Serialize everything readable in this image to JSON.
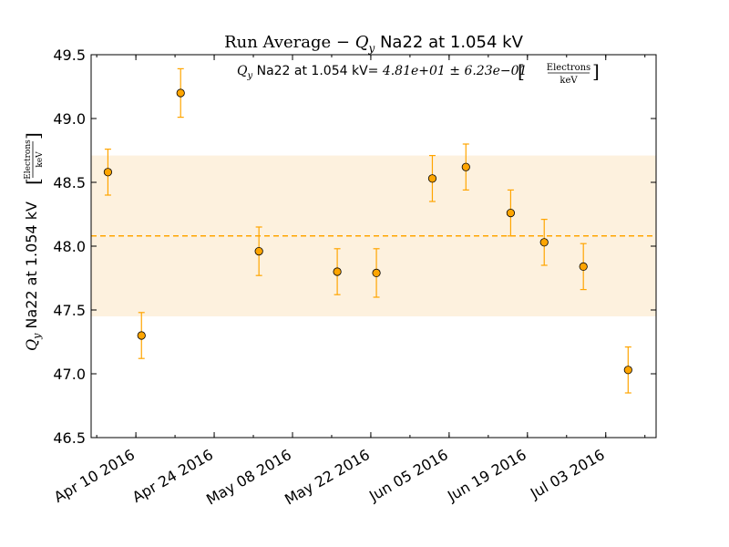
{
  "chart_data": {
    "type": "scatter",
    "title": {
      "prefix": "Run Average  −  ",
      "symbol": "Q",
      "subscript": "y",
      "suffix": " Na22 at 1.054 kV"
    },
    "annotation": {
      "symbol": "Q",
      "subscript": "y",
      "text": " Na22 at 1.054 kV",
      "equation": "= 4.81e+01 ± 6.23e−01",
      "unit_numerator": "Electrons",
      "unit_denominator": "keV"
    },
    "ylabel": {
      "symbol": "Q",
      "subscript": "y",
      "text": " Na22 at 1.054 kV",
      "unit_numerator": "Electrons",
      "unit_denominator": "keV"
    },
    "xlabel": "",
    "x_type": "date",
    "xlim": [
      "2016-04-02",
      "2016-07-12"
    ],
    "ylim": [
      46.5,
      49.5
    ],
    "x_ticks": [
      {
        "date": "2016-04-10",
        "label": "Apr 10 2016"
      },
      {
        "date": "2016-04-24",
        "label": "Apr 24 2016"
      },
      {
        "date": "2016-05-08",
        "label": "May 08 2016"
      },
      {
        "date": "2016-05-22",
        "label": "May 22 2016"
      },
      {
        "date": "2016-06-05",
        "label": "Jun 05 2016"
      },
      {
        "date": "2016-06-19",
        "label": "Jun 19 2016"
      },
      {
        "date": "2016-07-03",
        "label": "Jul 03 2016"
      }
    ],
    "y_ticks": [
      {
        "value": 46.5,
        "label": "46.5"
      },
      {
        "value": 47.0,
        "label": "47.0"
      },
      {
        "value": 47.5,
        "label": "47.5"
      },
      {
        "value": 48.0,
        "label": "48.0"
      },
      {
        "value": 48.5,
        "label": "48.5"
      },
      {
        "value": 49.0,
        "label": "49.0"
      },
      {
        "value": 49.5,
        "label": "49.5"
      }
    ],
    "mean": 48.08,
    "band": [
      47.45,
      48.71
    ],
    "points": [
      {
        "date": "2016-04-05",
        "y": 48.58,
        "yerr": 0.18
      },
      {
        "date": "2016-04-11",
        "y": 47.3,
        "yerr": 0.18
      },
      {
        "date": "2016-04-18",
        "y": 49.2,
        "yerr": 0.19
      },
      {
        "date": "2016-05-02",
        "y": 47.96,
        "yerr": 0.19
      },
      {
        "date": "2016-05-16",
        "y": 47.8,
        "yerr": 0.18
      },
      {
        "date": "2016-05-23",
        "y": 47.79,
        "yerr": 0.19
      },
      {
        "date": "2016-06-02",
        "y": 48.53,
        "yerr": 0.18
      },
      {
        "date": "2016-06-08",
        "y": 48.62,
        "yerr": 0.18
      },
      {
        "date": "2016-06-16",
        "y": 48.26,
        "yerr": 0.18
      },
      {
        "date": "2016-06-22",
        "y": 48.03,
        "yerr": 0.18
      },
      {
        "date": "2016-06-29",
        "y": 47.84,
        "yerr": 0.18
      },
      {
        "date": "2016-07-07",
        "y": 47.03,
        "yerr": 0.18
      }
    ],
    "grid": false,
    "legend": "none",
    "colors": {
      "marker_fill": "#FFA500",
      "marker_edge": "#000000",
      "errorbar": "#FFA500",
      "mean_line": "#FFA500",
      "band_fill": "#FDF1DE",
      "axes": "#000000"
    }
  }
}
